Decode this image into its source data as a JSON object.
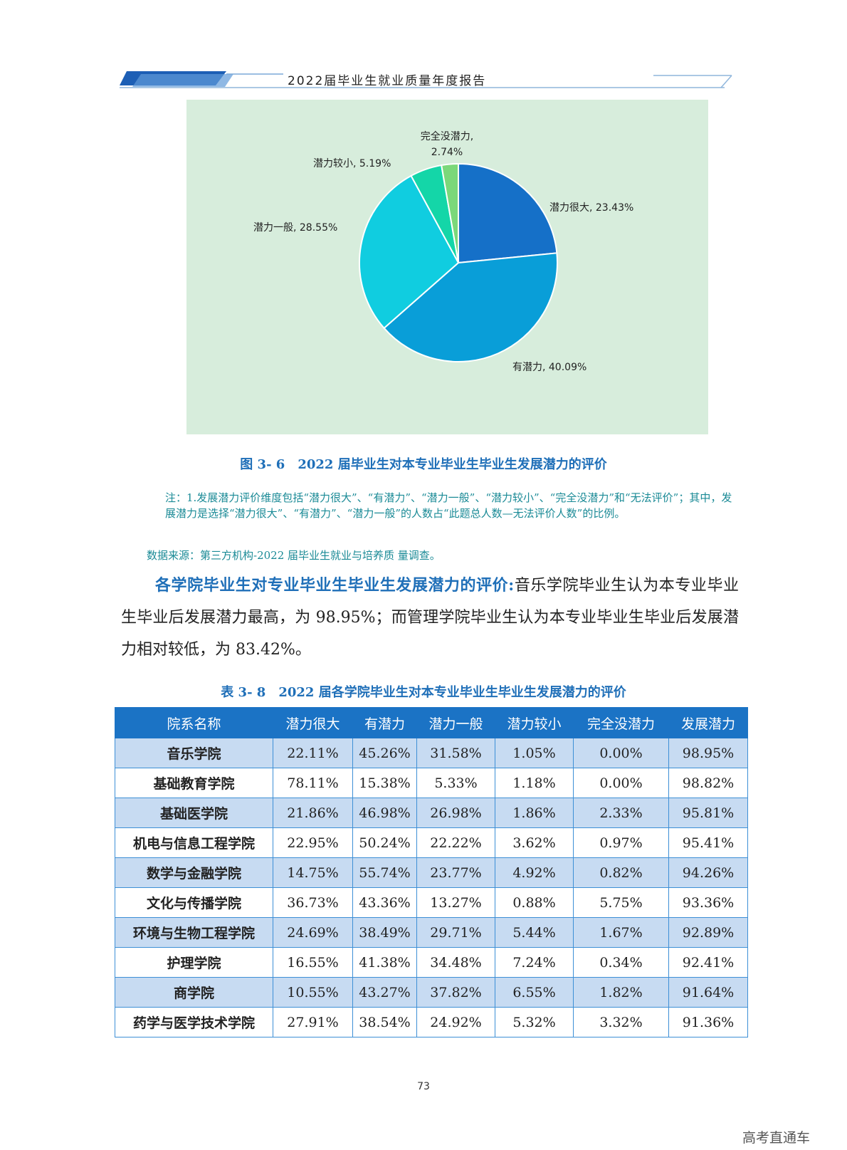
{
  "header": {
    "title": "2022届毕业生就业质量年度报告"
  },
  "chart_data": {
    "type": "pie",
    "title": "",
    "slices": [
      {
        "label": "潜力很大",
        "value": 23.43,
        "display": "潜力很大, 23.43%",
        "color": "#1570c8"
      },
      {
        "label": "有潜力",
        "value": 40.09,
        "display": "有潜力, 40.09%",
        "color": "#099ed8"
      },
      {
        "label": "潜力一般",
        "value": 28.55,
        "display": "潜力一般, 28.55%",
        "color": "#10cde0"
      },
      {
        "label": "潜力较小",
        "value": 5.19,
        "display": "潜力较小, 5.19%",
        "color": "#14d6a8"
      },
      {
        "label": "完全没潜力",
        "value": 2.74,
        "display_line1": "完全没潜力,",
        "display_line2": "2.74%",
        "color": "#7bd87a"
      }
    ]
  },
  "figure": {
    "caption": "图 3- 6　2022 届毕业生对本专业毕业生毕业生发展潜力的评价",
    "note_line1": "注：1.发展潜力评价维度包括“潜力很大”、“有潜力”、“潜力一般”、“潜力较小”、“完全没潜力”和“无法评价”；其中，发展潜力是选择“潜力很大”、“有潜力”、“潜力一般”的人数占“此题总人数—无法评价人数”的比例。",
    "source": "数据来源：第三方机构-2022 届毕业生就业与培养质 量调查。"
  },
  "paragraph": {
    "lead": "各学院毕业生对专业毕业生毕业生发展潜力的评价:",
    "body": "音乐学院毕业生认为本专业毕业生毕业后发展潜力最高，为 98.95%；而管理学院毕业生认为本专业毕业生毕业后发展潜力相对较低，为 83.42%。"
  },
  "table": {
    "caption": "表 3- 8　2022 届各学院毕业生对本专业毕业生毕业生发展潜力的评价",
    "headers": [
      "院系名称",
      "潜力很大",
      "有潜力",
      "潜力一般",
      "潜力较小",
      "完全没潜力",
      "发展潜力"
    ],
    "rows": [
      [
        "音乐学院",
        "22.11%",
        "45.26%",
        "31.58%",
        "1.05%",
        "0.00%",
        "98.95%"
      ],
      [
        "基础教育学院",
        "78.11%",
        "15.38%",
        "5.33%",
        "1.18%",
        "0.00%",
        "98.82%"
      ],
      [
        "基础医学院",
        "21.86%",
        "46.98%",
        "26.98%",
        "1.86%",
        "2.33%",
        "95.81%"
      ],
      [
        "机电与信息工程学院",
        "22.95%",
        "50.24%",
        "22.22%",
        "3.62%",
        "0.97%",
        "95.41%"
      ],
      [
        "数学与金融学院",
        "14.75%",
        "55.74%",
        "23.77%",
        "4.92%",
        "0.82%",
        "94.26%"
      ],
      [
        "文化与传播学院",
        "36.73%",
        "43.36%",
        "13.27%",
        "0.88%",
        "5.75%",
        "93.36%"
      ],
      [
        "环境与生物工程学院",
        "24.69%",
        "38.49%",
        "29.71%",
        "5.44%",
        "1.67%",
        "92.89%"
      ],
      [
        "护理学院",
        "16.55%",
        "41.38%",
        "34.48%",
        "7.24%",
        "0.34%",
        "92.41%"
      ],
      [
        "商学院",
        "10.55%",
        "43.27%",
        "37.82%",
        "6.55%",
        "1.82%",
        "91.64%"
      ],
      [
        "药学与医学技术学院",
        "27.91%",
        "38.54%",
        "24.92%",
        "5.32%",
        "3.32%",
        "91.36%"
      ]
    ]
  },
  "footer": {
    "page_number": "73",
    "watermark": "高考直通车"
  }
}
